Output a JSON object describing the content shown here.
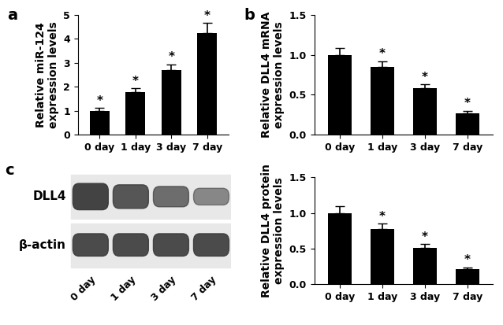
{
  "chart_data": [
    {
      "type": "bar",
      "panel_label": "a",
      "y_label": "Relative miR-124\nexpression levels",
      "categories": [
        "0 day",
        "1 day",
        "3 day",
        "7 day"
      ],
      "values": [
        1.0,
        1.78,
        2.68,
        4.25
      ],
      "errors": [
        0.12,
        0.15,
        0.25,
        0.4
      ],
      "significance": [
        "*",
        "*",
        "*",
        "*"
      ],
      "color": "#000000",
      "ylim": [
        0,
        5
      ],
      "yticks": [
        0,
        1,
        2,
        3,
        4,
        5
      ],
      "grid": false
    },
    {
      "type": "bar",
      "panel_label": "b",
      "y_label": "Relative DLL4 mRNA\nexpression levels",
      "categories": [
        "0 day",
        "1 day",
        "3 day",
        "7 day"
      ],
      "values": [
        1.0,
        0.85,
        0.58,
        0.27
      ],
      "errors": [
        0.08,
        0.07,
        0.05,
        0.03
      ],
      "significance": [
        null,
        "*",
        "*",
        "*"
      ],
      "color": "#000000",
      "ylim": [
        0,
        1.5
      ],
      "yticks": [
        {
          "value": 0,
          "label": "0.0"
        },
        {
          "value": 0.5,
          "label": "0.5"
        },
        {
          "value": 1,
          "label": "1.0"
        },
        {
          "value": 1.5,
          "label": "1.5"
        }
      ],
      "grid": false
    },
    {
      "type": "bar",
      "y_label": "Relative DLL4 protein\nexpression levels",
      "categories": [
        "0 day",
        "1 day",
        "3 day",
        "7 day"
      ],
      "values": [
        1.0,
        0.78,
        0.51,
        0.21
      ],
      "errors": [
        0.09,
        0.07,
        0.05,
        0.03
      ],
      "significance": [
        null,
        "*",
        "*",
        "*"
      ],
      "color": "#000000",
      "ylim": [
        0,
        1.5
      ],
      "yticks": [
        {
          "value": 0,
          "label": "0.0"
        },
        {
          "value": 0.5,
          "label": "0.5"
        },
        {
          "value": 1,
          "label": "1.0"
        },
        {
          "value": 1.5,
          "label": "1.5"
        }
      ],
      "grid": false
    }
  ],
  "blot": {
    "panel_label": "c",
    "rows": [
      "DLL4",
      "β-actin"
    ],
    "lanes": [
      "0 day",
      "1 day",
      "3 day",
      "7 day"
    ]
  }
}
